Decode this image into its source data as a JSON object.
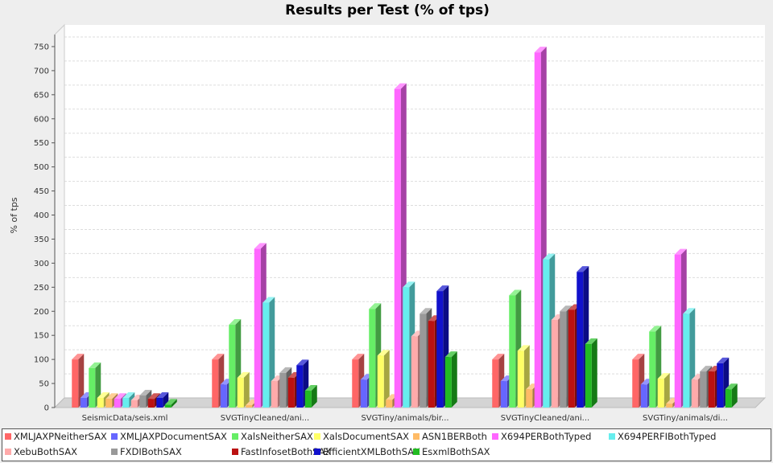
{
  "chart_data": {
    "type": "bar",
    "title": "Results per Test (% of tps)",
    "ylabel": "% of tps",
    "xlabel": "",
    "ylim": [
      0,
      775
    ],
    "yticks": [
      0,
      50,
      100,
      150,
      200,
      250,
      300,
      350,
      400,
      450,
      500,
      550,
      600,
      650,
      700,
      750
    ],
    "grid": true,
    "legend_position": "bottom",
    "categories": [
      "SeismicData/seis.xml",
      "SVGTinyCleaned/ani...",
      "SVGTiny/animals/bir...",
      "SVGTinyCleaned/ani...",
      "SVGTiny/animals/di..."
    ],
    "series": [
      {
        "name": "XMLJAXPNeitherSAX",
        "color": "#ff6666",
        "values": [
          100,
          100,
          100,
          100,
          100
        ]
      },
      {
        "name": "XMLJAXPDocumentSAX",
        "color": "#6666ff",
        "values": [
          20,
          48,
          58,
          55,
          48
        ]
      },
      {
        "name": "XalsNeitherSAX",
        "color": "#66ee66",
        "values": [
          82,
          172,
          205,
          233,
          158
        ]
      },
      {
        "name": "XalsDocumentSAX",
        "color": "#ffff66",
        "values": [
          20,
          62,
          108,
          118,
          60
        ]
      },
      {
        "name": "ASN1BERBoth",
        "color": "#ffbb66",
        "values": [
          18,
          5,
          16,
          38,
          8
        ]
      },
      {
        "name": "X694PERBothTyped",
        "color": "#ff66ff",
        "values": [
          18,
          330,
          662,
          738,
          318
        ]
      },
      {
        "name": "X694PERFIBothTyped",
        "color": "#66eeee",
        "values": [
          20,
          218,
          250,
          308,
          195
        ]
      },
      {
        "name": "XebuBothSAX",
        "color": "#ffaaaa",
        "values": [
          15,
          55,
          148,
          182,
          58
        ]
      },
      {
        "name": "FXDIBothSAX",
        "color": "#999999",
        "values": [
          25,
          72,
          195,
          200,
          75
        ]
      },
      {
        "name": "FastInfosetBothSAX",
        "color": "#bb1111",
        "values": [
          18,
          62,
          180,
          203,
          75
        ]
      },
      {
        "name": "EfficientXMLBothSAX",
        "color": "#1111cc",
        "values": [
          20,
          88,
          242,
          282,
          92
        ]
      },
      {
        "name": "EsxmlBothSAX",
        "color": "#22bb22",
        "values": [
          6,
          35,
          105,
          132,
          38
        ]
      }
    ]
  }
}
